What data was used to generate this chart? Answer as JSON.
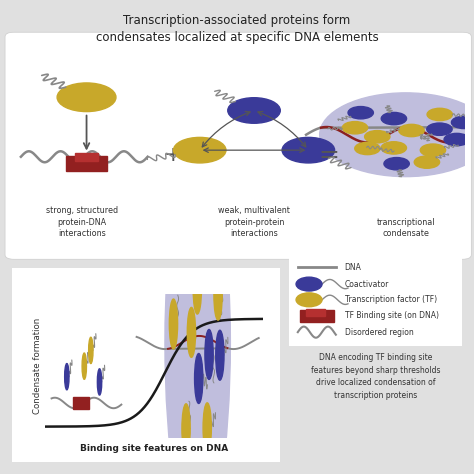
{
  "title": "Transcription-associated proteins form\ncondensates localized at specific DNA elements",
  "bg_color": "#e0e0e0",
  "panel_bg": "#ffffff",
  "blue_color": "#3a3a99",
  "gold_color": "#c8a82a",
  "red_color": "#922020",
  "condensate_bg": "#c0bedd",
  "dna_color": "#888888",
  "label1": "strong, structured\nprotein-DNA\ninteractions",
  "label2": "weak, multivalent\nprotein-protein\ninteractions",
  "label3": "transcriptional\ncondensate",
  "legend_items": [
    "DNA",
    "Coactivator",
    "Transcription factor (TF)",
    "TF Binding site (on DNA)",
    "Disordered region"
  ],
  "xlabel": "Binding site features on DNA",
  "ylabel": "Condensate formation",
  "bottom_text": "DNA encoding TF binding site\nfeatures beyond sharp thresholds\ndrive localized condensation of\ntranscription proteins"
}
